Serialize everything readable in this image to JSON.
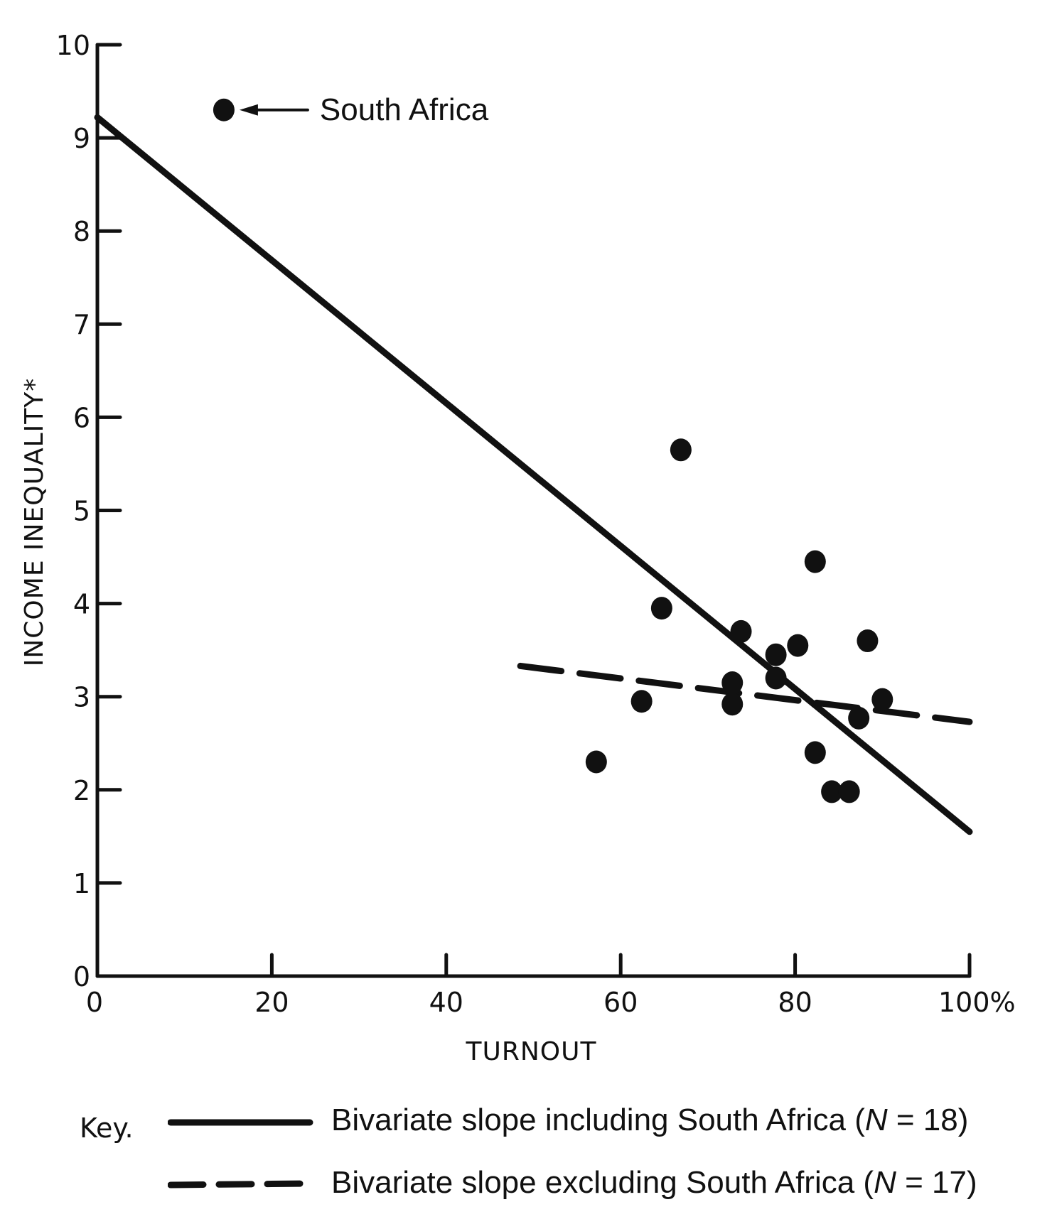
{
  "chart_data": {
    "type": "scatter",
    "xlabel": "TURNOUT",
    "ylabel": "INCOME INEQUALITY*",
    "xlim": [
      0,
      100
    ],
    "ylim": [
      0,
      10
    ],
    "xticks": [
      0,
      20,
      40,
      60,
      80,
      100
    ],
    "xtick_labels": [
      "0",
      "20",
      "40",
      "60",
      "80",
      "100%"
    ],
    "yticks": [
      0,
      1,
      2,
      3,
      4,
      5,
      6,
      7,
      8,
      9,
      10
    ],
    "ytick_labels": [
      "0",
      "1",
      "2",
      "3",
      "4",
      "5",
      "6",
      "7",
      "8",
      "9",
      "10"
    ],
    "points": [
      {
        "x": 14.5,
        "y": 9.3,
        "label": "South Africa"
      },
      {
        "x": 66.9,
        "y": 5.65
      },
      {
        "x": 82.3,
        "y": 4.45
      },
      {
        "x": 64.7,
        "y": 3.95
      },
      {
        "x": 73.8,
        "y": 3.7
      },
      {
        "x": 77.8,
        "y": 3.45
      },
      {
        "x": 80.3,
        "y": 3.55
      },
      {
        "x": 88.3,
        "y": 3.6
      },
      {
        "x": 77.8,
        "y": 3.2
      },
      {
        "x": 72.8,
        "y": 3.15
      },
      {
        "x": 62.4,
        "y": 2.95
      },
      {
        "x": 72.8,
        "y": 2.92
      },
      {
        "x": 90.0,
        "y": 2.97
      },
      {
        "x": 87.3,
        "y": 2.77
      },
      {
        "x": 82.3,
        "y": 2.4
      },
      {
        "x": 84.2,
        "y": 1.98
      },
      {
        "x": 86.2,
        "y": 1.98
      },
      {
        "x": 57.2,
        "y": 2.3
      }
    ],
    "lines": [
      {
        "name": "Bivariate slope including South Africa (N = 18)",
        "style": "solid",
        "x": [
          0,
          100
        ],
        "y": [
          9.22,
          1.55
        ]
      },
      {
        "name": "Bivariate slope excluding South Africa (N = 17)",
        "style": "dashed",
        "x": [
          48.5,
          100
        ],
        "y": [
          3.33,
          2.73
        ]
      }
    ],
    "annotations": [
      {
        "text": "South Africa",
        "x": 14.5,
        "y": 9.3
      }
    ]
  },
  "legend": {
    "key_label": "Key.",
    "entries": [
      {
        "style": "solid",
        "text": "Bivariate slope including South Africa (",
        "n_italic": "N",
        "n_rest": " = 18)"
      },
      {
        "style": "dashed",
        "text": "Bivariate slope excluding South Africa (",
        "n_italic": "N",
        "n_rest": " = 17)"
      }
    ]
  }
}
